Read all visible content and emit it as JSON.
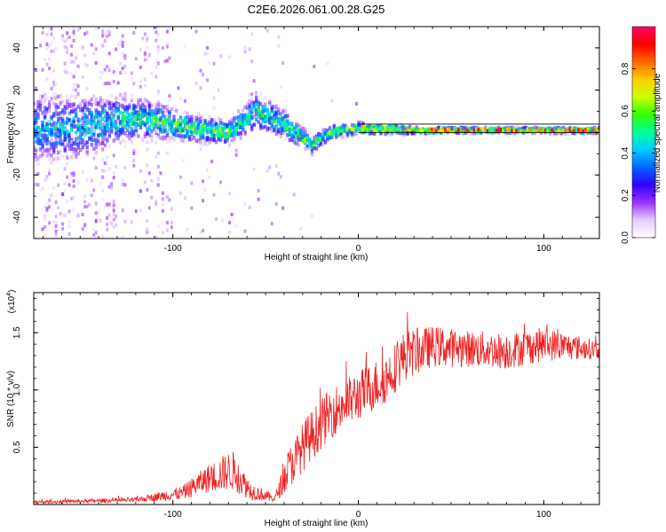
{
  "figure": {
    "title": "C2E6.2026.061.00.28.G25"
  },
  "chart_data": [
    {
      "type": "heatmap",
      "name": "spectrogram",
      "xlabel": "Height of straight line (km)",
      "ylabel": "Frequency (Hz)",
      "xlim": [
        -175,
        130
      ],
      "ylim": [
        -50,
        50
      ],
      "x_ticks": [
        -100,
        0,
        100
      ],
      "x_tick_labels": [
        "-100",
        "0",
        "100"
      ],
      "y_ticks": [
        -40,
        -20,
        0,
        20,
        40
      ],
      "y_tick_labels": [
        "-40",
        "-20",
        "0",
        "20",
        "40"
      ],
      "colorbar": {
        "label": "Normalized spectral amplitude",
        "range": [
          0,
          1
        ],
        "ticks": [
          0.0,
          0.2,
          0.4,
          0.6,
          0.8
        ],
        "tick_labels": [
          "0.0",
          "0.2",
          "0.4",
          "0.6",
          "0.8"
        ],
        "colors": [
          "#ffffff",
          "#e6ccff",
          "#9933ff",
          "#3300ff",
          "#0066ff",
          "#00ccff",
          "#00ff99",
          "#33ff00",
          "#ccff00",
          "#ffcc00",
          "#ff6600",
          "#ff0000",
          "#ff0066"
        ]
      },
      "reference_lines_hz": [
        0,
        4
      ],
      "ridge": [
        {
          "x": -150,
          "freq": 2,
          "spread": 14,
          "amp": 0.45
        },
        {
          "x": -130,
          "freq": 6,
          "spread": 10,
          "amp": 0.5
        },
        {
          "x": -110,
          "freq": 6,
          "spread": 8,
          "amp": 0.55
        },
        {
          "x": -90,
          "freq": 2,
          "spread": 6,
          "amp": 0.6
        },
        {
          "x": -70,
          "freq": 0,
          "spread": 5,
          "amp": 0.6
        },
        {
          "x": -55,
          "freq": 10,
          "spread": 8,
          "amp": 0.5
        },
        {
          "x": -40,
          "freq": 4,
          "spread": 6,
          "amp": 0.55
        },
        {
          "x": -25,
          "freq": -6,
          "spread": 4,
          "amp": 0.6
        },
        {
          "x": -15,
          "freq": 0,
          "spread": 3,
          "amp": 0.6
        },
        {
          "x": 0,
          "freq": 2,
          "spread": 2.5,
          "amp": 0.7
        },
        {
          "x": 30,
          "freq": 1,
          "spread": 1.5,
          "amp": 0.85
        },
        {
          "x": 60,
          "freq": 1,
          "spread": 1.2,
          "amp": 0.95
        },
        {
          "x": 130,
          "freq": 1,
          "spread": 1.2,
          "amp": 0.95
        }
      ]
    },
    {
      "type": "line",
      "name": "snr",
      "xlabel": "Height of straight line (km)",
      "ylabel": "SNR (10 * v/v)",
      "multiplier_label": "(x10",
      "multiplier_exponent": "4",
      "xlim": [
        -175,
        130
      ],
      "ylim": [
        0,
        1.85
      ],
      "x_ticks": [
        -100,
        0,
        100
      ],
      "x_tick_labels": [
        "-100",
        "0",
        "100"
      ],
      "y_ticks": [
        0.5,
        1.0,
        1.5
      ],
      "y_tick_labels": [
        "0.5",
        "1.0",
        "1.5"
      ],
      "color": "#ee2222",
      "envelope": [
        {
          "x": -175,
          "mean": 0.02,
          "noise": 0.015
        },
        {
          "x": -120,
          "mean": 0.04,
          "noise": 0.02
        },
        {
          "x": -95,
          "mean": 0.1,
          "noise": 0.06
        },
        {
          "x": -82,
          "mean": 0.22,
          "noise": 0.12
        },
        {
          "x": -68,
          "mean": 0.3,
          "noise": 0.18
        },
        {
          "x": -58,
          "mean": 0.12,
          "noise": 0.08
        },
        {
          "x": -45,
          "mean": 0.05,
          "noise": 0.03
        },
        {
          "x": -38,
          "mean": 0.3,
          "noise": 0.18
        },
        {
          "x": -28,
          "mean": 0.55,
          "noise": 0.22
        },
        {
          "x": -15,
          "mean": 0.8,
          "noise": 0.22
        },
        {
          "x": 0,
          "mean": 0.95,
          "noise": 0.22
        },
        {
          "x": 15,
          "mean": 1.1,
          "noise": 0.22
        },
        {
          "x": 25,
          "mean": 1.3,
          "noise": 0.22
        },
        {
          "x": 40,
          "mean": 1.38,
          "noise": 0.18
        },
        {
          "x": 60,
          "mean": 1.36,
          "noise": 0.16
        },
        {
          "x": 80,
          "mean": 1.34,
          "noise": 0.16
        },
        {
          "x": 100,
          "mean": 1.4,
          "noise": 0.15
        },
        {
          "x": 130,
          "mean": 1.35,
          "noise": 0.08
        }
      ]
    }
  ]
}
